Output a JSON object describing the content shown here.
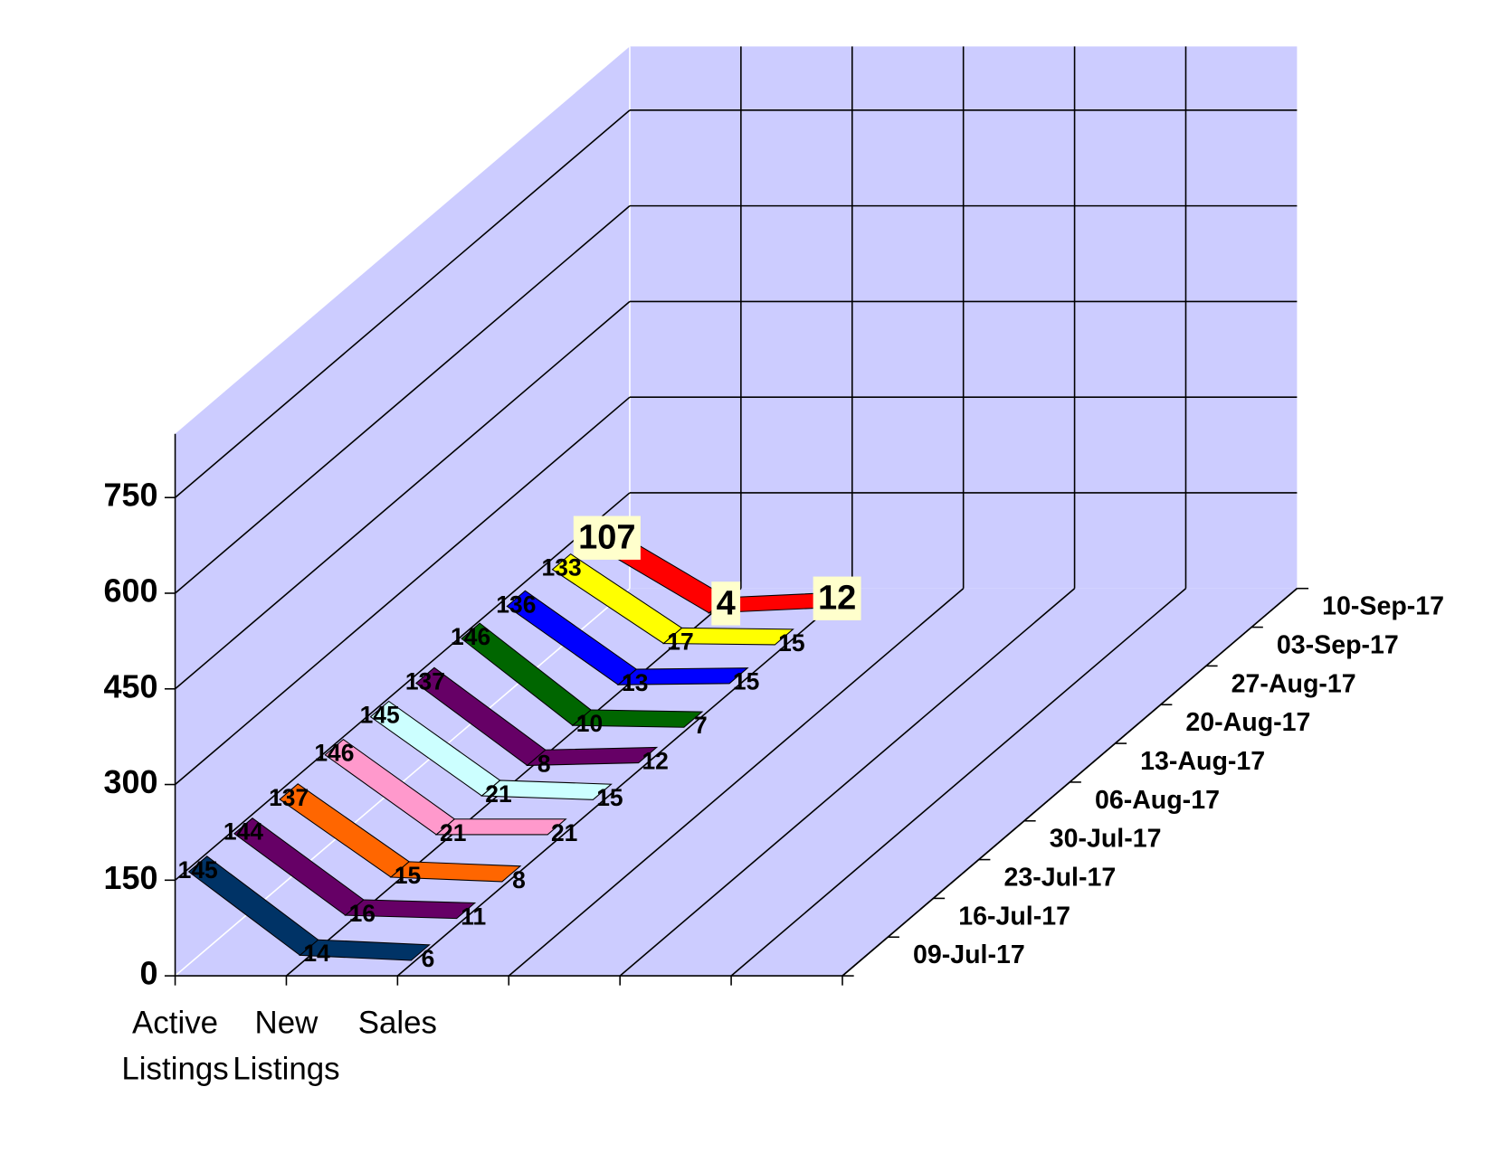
{
  "chart_data": {
    "type": "line3d",
    "categories": [
      "Active Listings",
      "New Listings",
      "Sales"
    ],
    "series": [
      {
        "name": "09-Jul-17",
        "color": "#003366",
        "values": [
          145,
          14,
          6
        ]
      },
      {
        "name": "16-Jul-17",
        "color": "#660066",
        "values": [
          144,
          16,
          11
        ]
      },
      {
        "name": "23-Jul-17",
        "color": "#ff6600",
        "values": [
          137,
          15,
          8
        ]
      },
      {
        "name": "30-Jul-17",
        "color": "#ff99cc",
        "values": [
          146,
          21,
          21
        ]
      },
      {
        "name": "06-Aug-17",
        "color": "#ccffff",
        "values": [
          145,
          21,
          15
        ]
      },
      {
        "name": "13-Aug-17",
        "color": "#660066",
        "values": [
          137,
          8,
          12
        ]
      },
      {
        "name": "20-Aug-17",
        "color": "#006600",
        "values": [
          146,
          10,
          7
        ]
      },
      {
        "name": "27-Aug-17",
        "color": "#0000ff",
        "values": [
          136,
          13,
          15
        ]
      },
      {
        "name": "03-Sep-17",
        "color": "#ffff00",
        "values": [
          133,
          17,
          15
        ]
      },
      {
        "name": "10-Sep-17",
        "color": "#ff0000",
        "values": [
          107,
          4,
          12
        ]
      }
    ],
    "ylim": [
      0,
      850
    ],
    "yticks": [
      0,
      150,
      300,
      450,
      600,
      750
    ],
    "grid": true,
    "wall_color": "#ccccff"
  }
}
